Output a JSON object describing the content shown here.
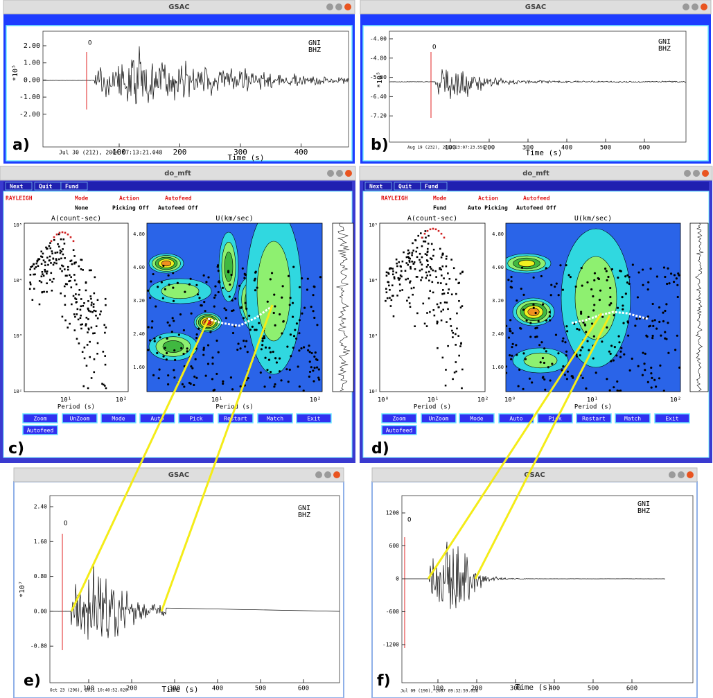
{
  "windows": {
    "a": {
      "title": "GSAC",
      "label": "a)",
      "station": "GNI",
      "channel": "BHZ",
      "marker": "O",
      "ylabel": "*10⁵",
      "yticks": [
        "2.00",
        "1.00",
        "0.00",
        "-1.00",
        "-2.00"
      ],
      "xticks": [
        "100",
        "200",
        "300",
        "400"
      ],
      "xlabel": "Time (s)",
      "date": "Jul 30 (212), 2004 07:13:21.048"
    },
    "b": {
      "title": "GSAC",
      "label": "b)",
      "station": "GNI",
      "channel": "BHZ",
      "marker": "O",
      "ylabel": "*10⁵",
      "yticks": [
        "-4.00",
        "-4.80",
        "-5.60",
        "-6.40",
        "-7.20"
      ],
      "xticks": [
        "100",
        "200",
        "300",
        "400",
        "500",
        "600"
      ],
      "xlabel": "Time (s)",
      "date": "Aug 19 (232), 2012 23:07:23.550"
    },
    "c": {
      "title": "do_mft",
      "label": "c)",
      "menu": [
        "Next",
        "Quit",
        "Fund"
      ],
      "status_header": [
        "RAYLEIGH",
        "Mode",
        "Action",
        "Autofeed"
      ],
      "status_values": [
        "None",
        "Picking Off",
        "Autofeed Off"
      ],
      "amplitude": {
        "title": "A(count-sec)",
        "yticks": [
          "10⁵",
          "10⁴",
          "10³",
          "10²"
        ],
        "xticks": [
          "10¹",
          "10²"
        ],
        "xlabel": "Period (s)"
      },
      "velocity": {
        "title": "U(km/sec)",
        "yticks": [
          "4.80",
          "4.00",
          "3.20",
          "2.40",
          "1.60"
        ],
        "xticks": [
          "10¹",
          "10²"
        ],
        "xlabel": "Period (s)"
      },
      "buttons": [
        "Zoom",
        "UnZoom",
        "Mode",
        "Auto",
        "Pick",
        "Restart",
        "Match",
        "Exit",
        "Autofeed"
      ]
    },
    "d": {
      "title": "do_mft",
      "label": "d)",
      "menu": [
        "Next",
        "Quit",
        "Fund"
      ],
      "status_header": [
        "RAYLEIGH",
        "Mode",
        "Action",
        "Autofeed"
      ],
      "status_values": [
        "Fund",
        "Auto Picking",
        "Autofeed Off"
      ],
      "amplitude": {
        "title": "A(count-sec)",
        "yticks": [
          "10⁵",
          "10⁴",
          "10³",
          "10²"
        ],
        "xticks": [
          "10⁰",
          "10¹",
          "10²"
        ],
        "xlabel": "Period (s)"
      },
      "velocity": {
        "title": "U(km/sec)",
        "yticks": [
          "4.80",
          "4.00",
          "3.20",
          "2.40",
          "1.60"
        ],
        "xticks": [
          "10⁰",
          "10¹",
          "10²"
        ],
        "xlabel": "Period (s)"
      },
      "buttons": [
        "Zoom",
        "UnZoom",
        "Mode",
        "Auto",
        "Pick",
        "Restart",
        "Match",
        "Exit",
        "Autofeed"
      ]
    },
    "e": {
      "title": "GSAC",
      "label": "e)",
      "station": "GNI",
      "channel": "BHZ",
      "marker": "O",
      "ylabel": "*10⁷",
      "yticks": [
        "2.40",
        "1.60",
        "0.80",
        "0.00",
        "-0.80"
      ],
      "xticks": [
        "100",
        "200",
        "300",
        "400",
        "500",
        "600"
      ],
      "xlabel": "Time (s)",
      "date": "Oct 23 (296), 2011 10:40:52.020"
    },
    "f": {
      "title": "GSAC",
      "label": "f)",
      "station": "GNI",
      "channel": "BHZ",
      "marker": "O",
      "yticks": [
        "1200",
        "600",
        "0",
        "-600",
        "-1200"
      ],
      "xticks": [
        "100",
        "200",
        "300",
        "400",
        "500",
        "600"
      ],
      "xlabel": "Time (s)",
      "date": "Jul 09 (190), 2007 09:32:59.036"
    }
  }
}
